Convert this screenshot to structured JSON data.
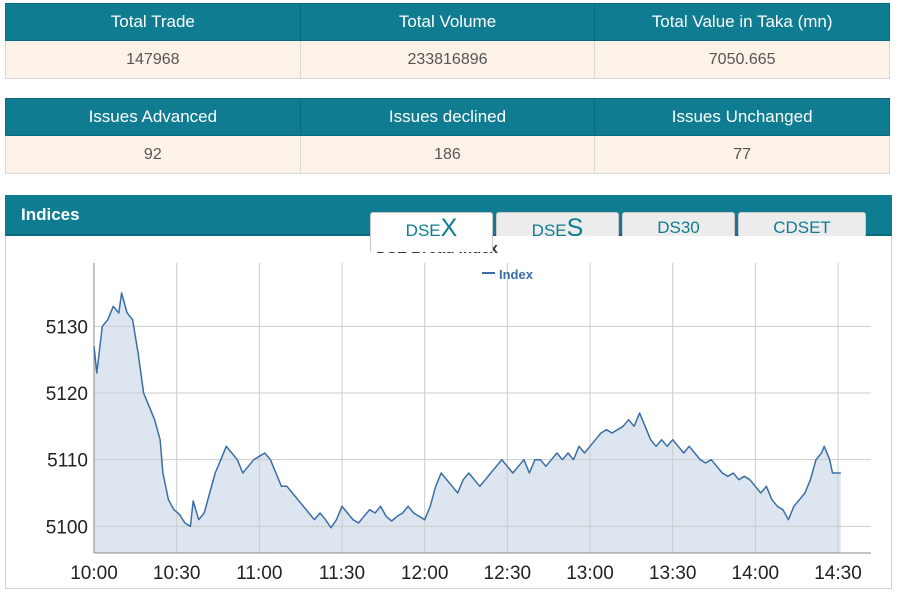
{
  "summary_top": {
    "headers": [
      "Total Trade",
      "Total Volume",
      "Total Value in Taka (mn)"
    ],
    "values": [
      "147968",
      "233816896",
      "7050.665"
    ]
  },
  "summary_issues": {
    "headers": [
      "Issues Advanced",
      "Issues declined",
      "Issues Unchanged"
    ],
    "values": [
      "92",
      "186",
      "77"
    ]
  },
  "indices": {
    "title": "Indices",
    "tabs": [
      {
        "prefix": "DSE",
        "suffix": "X",
        "active": true
      },
      {
        "prefix": "DSE",
        "suffix": "S",
        "active": false
      },
      {
        "label": "DS30",
        "active": false
      },
      {
        "label": "CDSET",
        "active": false
      }
    ]
  },
  "chart_data": {
    "type": "area",
    "title": "DSE Broad Index",
    "legend": [
      "Index"
    ],
    "legend_position": "top-center",
    "grid": true,
    "color": "#3a6ea5",
    "fill_color": "#dde6f0",
    "x_ticks": [
      "10:00",
      "10:30",
      "11:00",
      "11:30",
      "12:00",
      "12:30",
      "13:00",
      "13:30",
      "14:00",
      "14:30"
    ],
    "x_range": [
      "10:00",
      "14:30"
    ],
    "y_ticks": [
      5100,
      5110,
      5120,
      5130
    ],
    "ylim": [
      5096,
      5139.5
    ],
    "series": [
      {
        "name": "Index",
        "points": [
          [
            "10:00",
            5127
          ],
          [
            "10:01",
            5123
          ],
          [
            "10:03",
            5130
          ],
          [
            "10:05",
            5131
          ],
          [
            "10:07",
            5133
          ],
          [
            "10:09",
            5132
          ],
          [
            "10:10",
            5135
          ],
          [
            "10:12",
            5132
          ],
          [
            "10:14",
            5131
          ],
          [
            "10:16",
            5126
          ],
          [
            "10:18",
            5120
          ],
          [
            "10:20",
            5118
          ],
          [
            "10:22",
            5116
          ],
          [
            "10:24",
            5113
          ],
          [
            "10:25",
            5108
          ],
          [
            "10:27",
            5104
          ],
          [
            "10:29",
            5102.5
          ],
          [
            "10:31",
            5101.8
          ],
          [
            "10:33",
            5100.5
          ],
          [
            "10:35",
            5100
          ],
          [
            "10:36",
            5103.8
          ],
          [
            "10:38",
            5101
          ],
          [
            "10:40",
            5102
          ],
          [
            "10:42",
            5105
          ],
          [
            "10:44",
            5108
          ],
          [
            "10:46",
            5110
          ],
          [
            "10:48",
            5112
          ],
          [
            "10:50",
            5111
          ],
          [
            "10:52",
            5110
          ],
          [
            "10:54",
            5108
          ],
          [
            "10:56",
            5109
          ],
          [
            "10:58",
            5110
          ],
          [
            "11:00",
            5110.5
          ],
          [
            "11:02",
            5111
          ],
          [
            "11:04",
            5110
          ],
          [
            "11:06",
            5108
          ],
          [
            "11:08",
            5106
          ],
          [
            "11:10",
            5106
          ],
          [
            "11:12",
            5105
          ],
          [
            "11:14",
            5104
          ],
          [
            "11:16",
            5103
          ],
          [
            "11:18",
            5102
          ],
          [
            "11:20",
            5101
          ],
          [
            "11:22",
            5102
          ],
          [
            "11:24",
            5101
          ],
          [
            "11:26",
            5099.8
          ],
          [
            "11:28",
            5101
          ],
          [
            "11:30",
            5103
          ],
          [
            "11:32",
            5102
          ],
          [
            "11:34",
            5101
          ],
          [
            "11:36",
            5100.5
          ],
          [
            "11:38",
            5101.5
          ],
          [
            "11:40",
            5102.5
          ],
          [
            "11:42",
            5102
          ],
          [
            "11:44",
            5103
          ],
          [
            "11:46",
            5101.5
          ],
          [
            "11:48",
            5100.8
          ],
          [
            "11:50",
            5101.5
          ],
          [
            "11:52",
            5102
          ],
          [
            "11:54",
            5103
          ],
          [
            "11:56",
            5102
          ],
          [
            "11:58",
            5101.5
          ],
          [
            "12:00",
            5101
          ],
          [
            "12:02",
            5103
          ],
          [
            "12:04",
            5106
          ],
          [
            "12:06",
            5108
          ],
          [
            "12:08",
            5107
          ],
          [
            "12:10",
            5106
          ],
          [
            "12:12",
            5105
          ],
          [
            "12:14",
            5107
          ],
          [
            "12:16",
            5108
          ],
          [
            "12:18",
            5107
          ],
          [
            "12:20",
            5106
          ],
          [
            "12:22",
            5107
          ],
          [
            "12:24",
            5108
          ],
          [
            "12:26",
            5109
          ],
          [
            "12:28",
            5110
          ],
          [
            "12:30",
            5109
          ],
          [
            "12:32",
            5108
          ],
          [
            "12:34",
            5109
          ],
          [
            "12:36",
            5110
          ],
          [
            "12:38",
            5108
          ],
          [
            "12:40",
            5110
          ],
          [
            "12:42",
            5110
          ],
          [
            "12:44",
            5109
          ],
          [
            "12:46",
            5110
          ],
          [
            "12:48",
            5111
          ],
          [
            "12:50",
            5110
          ],
          [
            "12:52",
            5111
          ],
          [
            "12:54",
            5110
          ],
          [
            "12:56",
            5112
          ],
          [
            "12:58",
            5111
          ],
          [
            "13:00",
            5112
          ],
          [
            "13:02",
            5113
          ],
          [
            "13:04",
            5114
          ],
          [
            "13:06",
            5114.5
          ],
          [
            "13:08",
            5114
          ],
          [
            "13:10",
            5114.5
          ],
          [
            "13:12",
            5115
          ],
          [
            "13:14",
            5116
          ],
          [
            "13:16",
            5115
          ],
          [
            "13:18",
            5117
          ],
          [
            "13:20",
            5115
          ],
          [
            "13:22",
            5113
          ],
          [
            "13:24",
            5112
          ],
          [
            "13:26",
            5113
          ],
          [
            "13:28",
            5112
          ],
          [
            "13:30",
            5113
          ],
          [
            "13:32",
            5112
          ],
          [
            "13:34",
            5111
          ],
          [
            "13:36",
            5112
          ],
          [
            "13:38",
            5111
          ],
          [
            "13:40",
            5110
          ],
          [
            "13:42",
            5109.5
          ],
          [
            "13:44",
            5110
          ],
          [
            "13:46",
            5109
          ],
          [
            "13:48",
            5108
          ],
          [
            "13:50",
            5107.5
          ],
          [
            "13:52",
            5108
          ],
          [
            "13:54",
            5107
          ],
          [
            "13:56",
            5107.5
          ],
          [
            "13:58",
            5107
          ],
          [
            "14:00",
            5106
          ],
          [
            "14:02",
            5105
          ],
          [
            "14:04",
            5106
          ],
          [
            "14:06",
            5104
          ],
          [
            "14:08",
            5103
          ],
          [
            "14:10",
            5102.5
          ],
          [
            "14:12",
            5101
          ],
          [
            "14:14",
            5103
          ],
          [
            "14:16",
            5104
          ],
          [
            "14:18",
            5105
          ],
          [
            "14:20",
            5107
          ],
          [
            "14:22",
            5110
          ],
          [
            "14:24",
            5111
          ],
          [
            "14:25",
            5112
          ],
          [
            "14:27",
            5110
          ],
          [
            "14:28",
            5108
          ],
          [
            "14:30",
            5108
          ],
          [
            "14:31",
            5108
          ]
        ]
      }
    ]
  }
}
